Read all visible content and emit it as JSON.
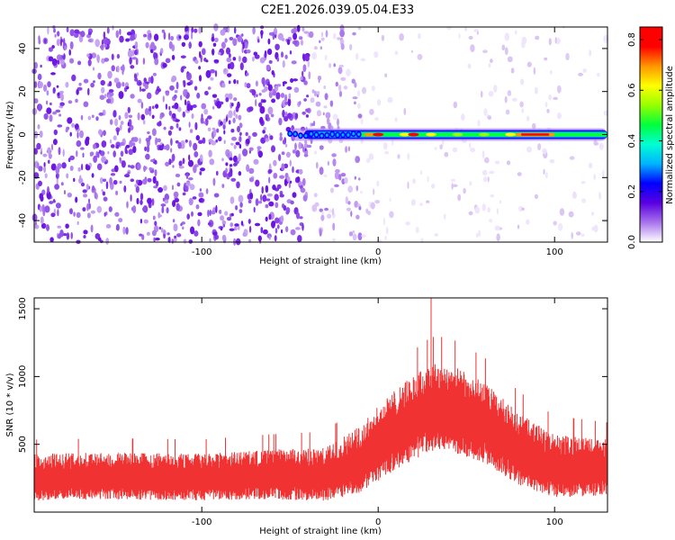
{
  "title": "C2E1.2026.039.05.04.E33",
  "colors": {
    "spec_cmap": [
      "#ffffff",
      "#d9c3f5",
      "#a874ec",
      "#7a28e6",
      "#5a00e0",
      "#0000ff",
      "#00b4ff",
      "#00ffd2",
      "#00ff3c",
      "#96ff00",
      "#ffff00",
      "#ff9600",
      "#ff0000"
    ],
    "snr_line": "#f03232"
  },
  "chart_data": [
    {
      "type": "heatmap",
      "xlabel": "Height of straight line (km)",
      "ylabel": "Frequency (Hz)",
      "xlim": [
        -195,
        130
      ],
      "ylim": [
        -50,
        50
      ],
      "xticks": [
        -100,
        0,
        100
      ],
      "yticks": [
        -40,
        -20,
        0,
        20,
        40
      ],
      "colorbar": {
        "label": "Normalized spectral amplitude",
        "range": [
          0,
          0.85
        ],
        "ticks": [
          0.0,
          0.2,
          0.4,
          0.6,
          0.8
        ],
        "tick_labels": [
          "0.0",
          "0.2",
          "0.4",
          "0.6",
          "0.8"
        ]
      },
      "carrier": {
        "frequency_hz": 0,
        "x_start_km": -50,
        "x_end_km": 130,
        "peak_amplitude": 0.85,
        "peak_x_km": 90
      },
      "grid": false
    },
    {
      "type": "line",
      "xlabel": "Height of straight line (km)",
      "ylabel": "SNR (10 * v/v)",
      "xlim": [
        -195,
        130
      ],
      "ylim": [
        0,
        1580
      ],
      "xticks": [
        -100,
        0,
        100
      ],
      "yticks": [
        500,
        1000,
        1500
      ],
      "envelope": {
        "x": [
          -195,
          -150,
          -100,
          -60,
          -30,
          -10,
          10,
          30,
          40,
          60,
          80,
          100,
          130
        ],
        "mean": [
          250,
          260,
          250,
          270,
          270,
          380,
          600,
          760,
          760,
          650,
          450,
          330,
          320
        ],
        "spread": [
          150,
          150,
          150,
          160,
          170,
          220,
          260,
          280,
          280,
          260,
          230,
          200,
          180
        ]
      },
      "max_point": {
        "x": 30,
        "y": 1580
      },
      "grid": false
    }
  ]
}
